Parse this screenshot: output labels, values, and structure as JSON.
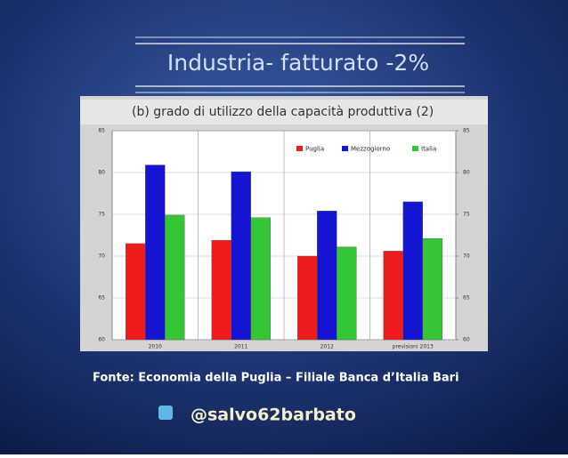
{
  "slide": {
    "title": "Industria- fatturato -2%",
    "source": "Fonte: Economia della Puglia – Filiale Banca d’Italia Bari",
    "handle": "@salvo62barbato"
  },
  "chart_data": {
    "type": "bar",
    "title": "(b) grado di utilizzo della capacità produttiva (2)",
    "categories": [
      "2010",
      "2011",
      "2012",
      "previsioni 2013"
    ],
    "series": [
      {
        "name": "Puglia",
        "color": "#ee1c1c",
        "values": [
          71.5,
          71.9,
          70.0,
          70.6
        ]
      },
      {
        "name": "Mezzogiorno",
        "color": "#1414d2",
        "values": [
          80.9,
          80.1,
          75.4,
          76.5
        ]
      },
      {
        "name": "Italia",
        "color": "#34c634",
        "values": [
          74.9,
          74.6,
          71.1,
          72.1
        ]
      }
    ],
    "ylim": [
      60,
      85
    ],
    "yticks": [
      60,
      65,
      70,
      75,
      80,
      85
    ],
    "y2lim": [
      60,
      85
    ],
    "y2ticks": [
      60,
      65,
      70,
      75,
      80,
      85
    ],
    "grid": true,
    "legend": "top-right"
  }
}
